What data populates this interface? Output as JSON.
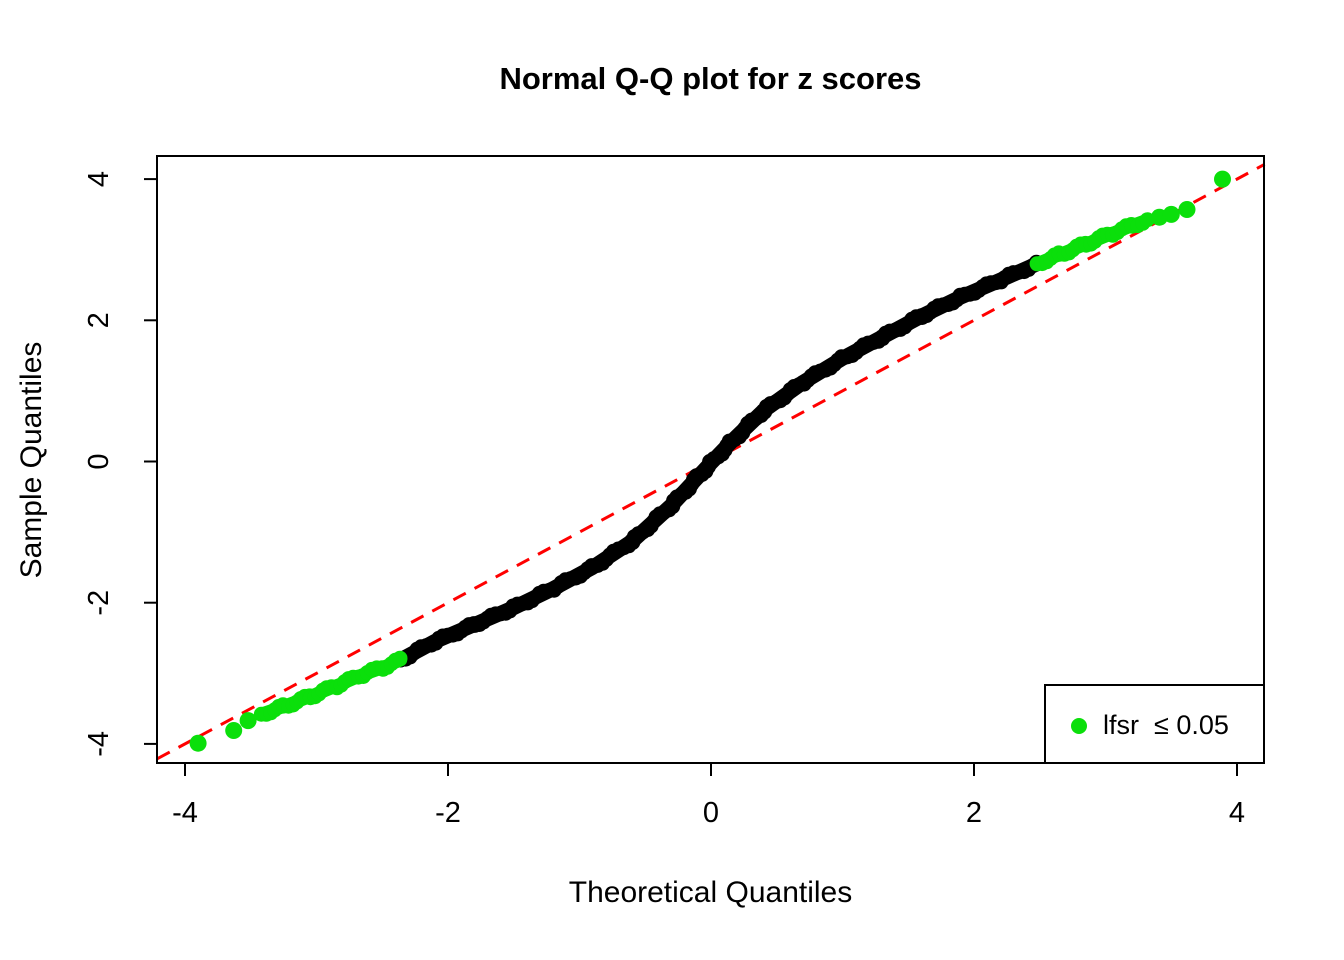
{
  "page": {
    "background": "#ffffff"
  },
  "chart_data": {
    "type": "scatter",
    "title": "Normal Q-Q plot for z scores",
    "xlabel": "Theoretical Quantiles",
    "ylabel": "Sample Quantiles",
    "xlim": [
      -4.21,
      4.21
    ],
    "ylim": [
      -4.28,
      4.33
    ],
    "grid": false,
    "x_ticks": [
      -4,
      -2,
      0,
      2,
      4
    ],
    "y_ticks": [
      -4,
      -2,
      0,
      2,
      4
    ],
    "x_tick_labels": [
      "-4",
      "-2",
      "0",
      "2",
      "4"
    ],
    "y_tick_labels": [
      "-4",
      "-2",
      "0",
      "2",
      "4"
    ],
    "colors": {
      "points_default": "#000000",
      "points_significant": "#0bdf0b",
      "reference_line": "#ff0000",
      "axis": "#000000"
    },
    "reference_line": {
      "type": "identity",
      "intercept": 0,
      "slope": 1,
      "style": "dashed",
      "color": "#ff0000"
    },
    "legend": {
      "position": "bottom-right",
      "entries": [
        {
          "label": "lfsr  ≤ 0.05",
          "marker": "filled-circle",
          "color": "#0bdf0b"
        }
      ]
    },
    "series": [
      {
        "name": "z-scores (not significant)",
        "color": "#000000",
        "render": "dense-overlapping-points-band",
        "band_points": [
          [
            -2.36,
            -2.81
          ],
          [
            -2.1,
            -2.55
          ],
          [
            -1.8,
            -2.31
          ],
          [
            -1.5,
            -2.07
          ],
          [
            -1.2,
            -1.8
          ],
          [
            -0.9,
            -1.5
          ],
          [
            -0.6,
            -1.13
          ],
          [
            -0.3,
            -0.62
          ],
          [
            -0.1,
            -0.22
          ],
          [
            0.0,
            -0.02
          ],
          [
            0.15,
            0.27
          ],
          [
            0.4,
            0.72
          ],
          [
            0.7,
            1.12
          ],
          [
            1.0,
            1.46
          ],
          [
            1.3,
            1.76
          ],
          [
            1.6,
            2.06
          ],
          [
            1.9,
            2.33
          ],
          [
            2.2,
            2.57
          ],
          [
            2.48,
            2.8
          ]
        ],
        "lone_points": []
      },
      {
        "name": "significant left tail (lfsr <= 0.05)",
        "color": "#0bdf0b",
        "render": "dense-overlapping-points-band",
        "band_points": [
          [
            -3.42,
            -3.58
          ],
          [
            -3.25,
            -3.47
          ],
          [
            -3.05,
            -3.33
          ],
          [
            -2.85,
            -3.18
          ],
          [
            -2.65,
            -3.02
          ],
          [
            -2.5,
            -2.92
          ],
          [
            -2.36,
            -2.81
          ]
        ],
        "lone_points": [
          [
            -3.9,
            -3.99
          ],
          [
            -3.63,
            -3.81
          ],
          [
            -3.52,
            -3.67
          ]
        ]
      },
      {
        "name": "significant right tail (lfsr <= 0.05)",
        "color": "#0bdf0b",
        "render": "dense-overlapping-points-band",
        "band_points": [
          [
            2.48,
            2.8
          ],
          [
            2.65,
            2.93
          ],
          [
            2.85,
            3.08
          ],
          [
            3.05,
            3.23
          ],
          [
            3.2,
            3.34
          ],
          [
            3.32,
            3.42
          ]
        ],
        "lone_points": [
          [
            3.41,
            3.46
          ],
          [
            3.5,
            3.5
          ],
          [
            3.62,
            3.57
          ],
          [
            3.89,
            4.0
          ]
        ]
      }
    ]
  }
}
